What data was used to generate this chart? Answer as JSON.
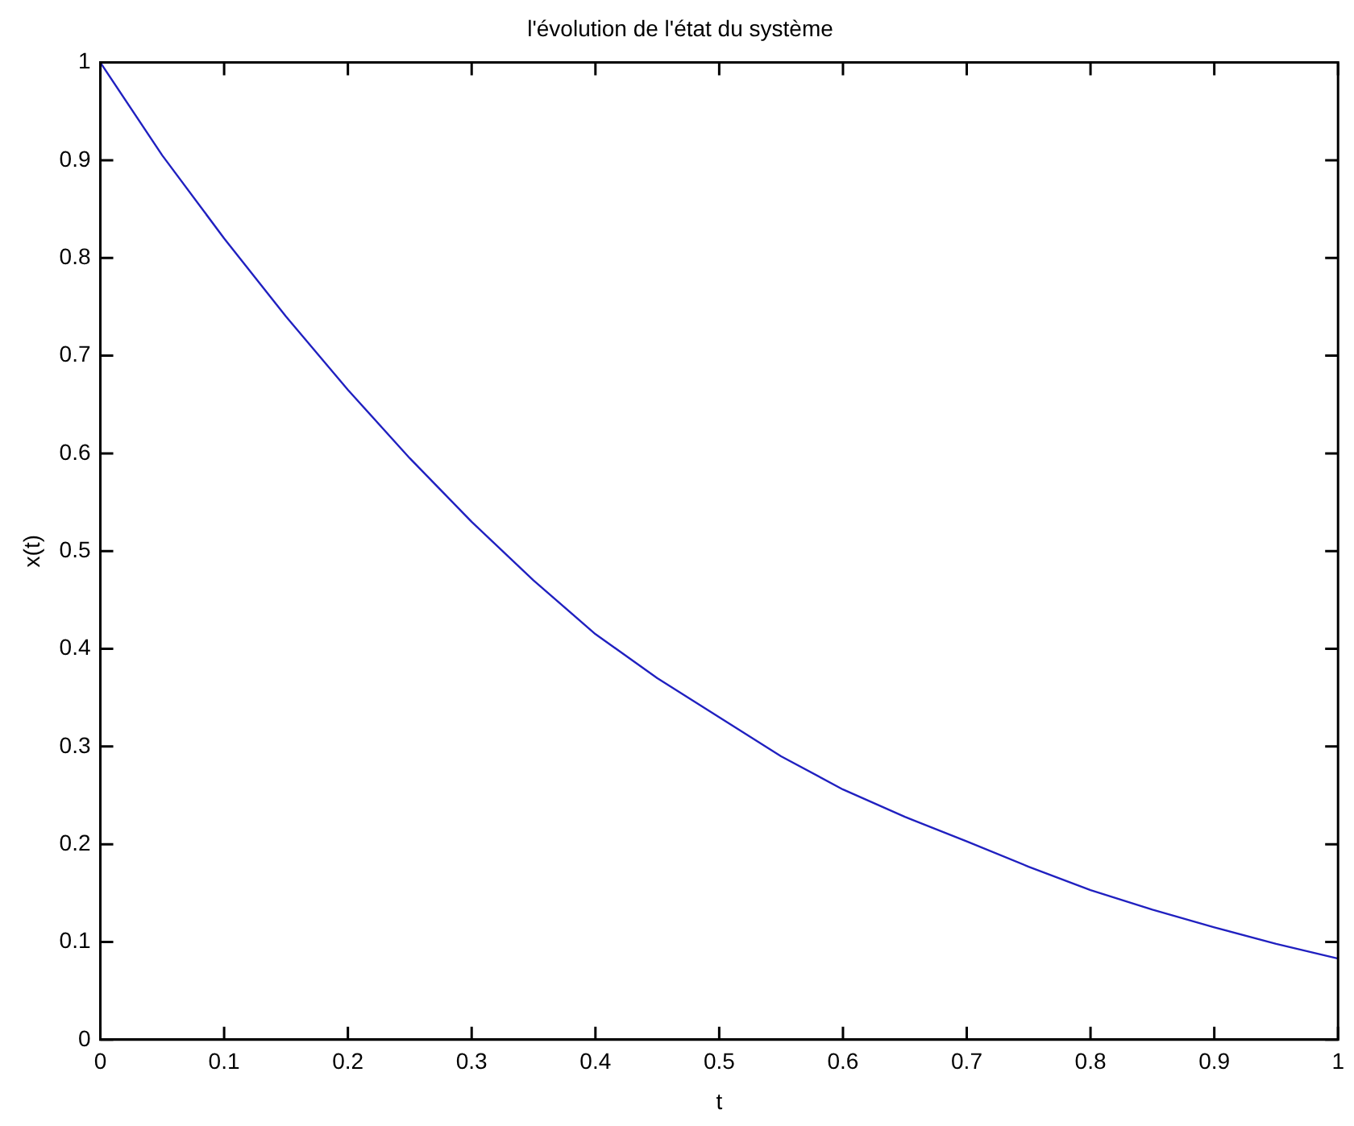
{
  "chart_data": {
    "type": "line",
    "title": "l'évolution de l'état du système",
    "xlabel": "t",
    "ylabel": "x(t)",
    "x": [
      0,
      0.05,
      0.1,
      0.15,
      0.2,
      0.25,
      0.3,
      0.35,
      0.4,
      0.45,
      0.5,
      0.55,
      0.6,
      0.65,
      0.7,
      0.75,
      0.8,
      0.85,
      0.9,
      0.95,
      1
    ],
    "series": [
      {
        "color": "#2020c0",
        "values": [
          1,
          0.905,
          0.82,
          0.74,
          0.665,
          0.595,
          0.53,
          0.47,
          0.415,
          0.37,
          0.33,
          0.29,
          0.256,
          0.228,
          0.203,
          0.177,
          0.153,
          0.133,
          0.115,
          0.098,
          0.083
        ]
      }
    ],
    "xlim": [
      0,
      1
    ],
    "xticks": [
      0,
      0.1,
      0.2,
      0.3,
      0.4,
      0.5,
      0.6,
      0.7,
      0.8,
      0.9,
      1
    ],
    "ylim": [
      0,
      1
    ],
    "yticks": [
      0,
      0.1,
      0.2,
      0.3,
      0.4,
      0.5,
      0.6,
      0.7,
      0.8,
      0.9,
      1
    ],
    "grid": false,
    "legend": false,
    "marker": "none",
    "line_style": "solid"
  }
}
